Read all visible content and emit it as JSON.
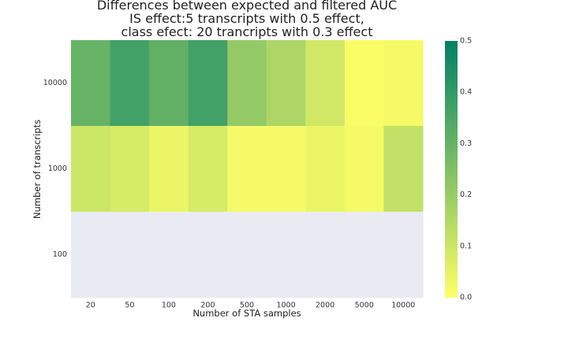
{
  "chart_data": {
    "type": "heatmap",
    "title_lines": [
      "Differences between expected and filtered AUC",
      "IS effect:5 transcripts with 0.5 effect,",
      "class efect: 20 trancripts with 0.3 effect"
    ],
    "xlabel": "Number of STA samples",
    "ylabel": "Number of transcripts",
    "x_categories": [
      "20",
      "50",
      "100",
      "200",
      "500",
      "1000",
      "2000",
      "5000",
      "10000"
    ],
    "y_categories": [
      "10000",
      "1000",
      "100"
    ],
    "values": [
      [
        0.3,
        0.37,
        0.31,
        0.37,
        0.21,
        0.16,
        0.09,
        0.01,
        0.02
      ],
      [
        0.1,
        0.08,
        0.04,
        0.08,
        0.02,
        0.02,
        0.04,
        0.02,
        0.12
      ],
      [
        null,
        null,
        null,
        null,
        null,
        null,
        null,
        null,
        null
      ]
    ],
    "missing_color": "#eaeaf2",
    "colorbar": {
      "vmin": 0.0,
      "vmax": 0.5,
      "ticks": [
        "0.0",
        "0.1",
        "0.2",
        "0.3",
        "0.4",
        "0.5"
      ],
      "colormap": "summer_r"
    }
  }
}
